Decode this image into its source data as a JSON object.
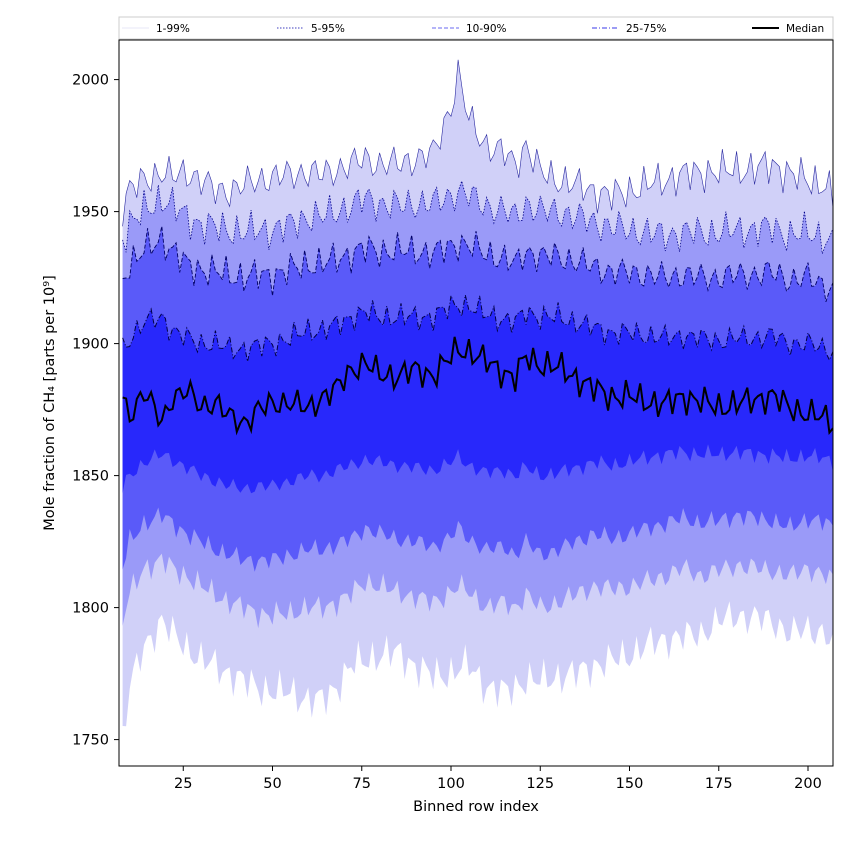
{
  "chart_data": {
    "type": "area",
    "xlabel": "Binned row index",
    "ylabel": "Mole fraction of CH₄ [parts per 10⁹]",
    "xlim": [
      7,
      207
    ],
    "ylim": [
      1740,
      2015
    ],
    "xticks": [
      25,
      50,
      75,
      100,
      125,
      150,
      175,
      200
    ],
    "yticks": [
      1750,
      1800,
      1850,
      1900,
      1950,
      2000
    ],
    "grid": false,
    "legend_placement": "top, across full width",
    "legend": [
      {
        "label": "1-99%",
        "color": "#d0d0f0",
        "style": "solid-thin"
      },
      {
        "label": "5-95%",
        "color": "#0000aa",
        "style": "dotted"
      },
      {
        "label": "10-90%",
        "color": "#6a6af2",
        "style": "dashed"
      },
      {
        "label": "25-75%",
        "color": "#3a3ae8",
        "style": "dashdot"
      },
      {
        "label": "Median",
        "color": "#000000",
        "style": "solid-thick"
      }
    ],
    "fill_colors": [
      "#d0d0f8",
      "#9a9af8",
      "#5a5af9",
      "#2828fb"
    ],
    "x_anchors": [
      8,
      10,
      14,
      19,
      22,
      26,
      30,
      34,
      38,
      42,
      46,
      50,
      55,
      60,
      64,
      68,
      72,
      76,
      80,
      85,
      90,
      95,
      100,
      102,
      105,
      110,
      115,
      118,
      121,
      125,
      130,
      135,
      140,
      145,
      150,
      155,
      160,
      165,
      170,
      175,
      180,
      185,
      190,
      195,
      200,
      205,
      207
    ],
    "percentiles": {
      "p1": [
        1750,
        1770,
        1785,
        1795,
        1790,
        1785,
        1780,
        1778,
        1775,
        1772,
        1770,
        1768,
        1768,
        1765,
        1765,
        1770,
        1778,
        1780,
        1782,
        1783,
        1778,
        1774,
        1775,
        1777,
        1778,
        1770,
        1768,
        1770,
        1773,
        1772,
        1774,
        1775,
        1778,
        1780,
        1782,
        1786,
        1788,
        1789,
        1790,
        1795,
        1797,
        1796,
        1795,
        1790,
        1792,
        1790,
        1785
      ],
      "p5": [
        1795,
        1805,
        1815,
        1818,
        1815,
        1812,
        1808,
        1805,
        1802,
        1800,
        1798,
        1797,
        1798,
        1800,
        1800,
        1802,
        1805,
        1810,
        1808,
        1806,
        1804,
        1802,
        1806,
        1808,
        1806,
        1800,
        1802,
        1800,
        1805,
        1800,
        1802,
        1805,
        1808,
        1807,
        1808,
        1810,
        1812,
        1815,
        1812,
        1814,
        1816,
        1815,
        1814,
        1812,
        1815,
        1812,
        1810
      ],
      "p10": [
        1815,
        1825,
        1832,
        1835,
        1832,
        1828,
        1825,
        1822,
        1820,
        1818,
        1818,
        1818,
        1820,
        1822,
        1822,
        1824,
        1826,
        1830,
        1828,
        1826,
        1825,
        1823,
        1827,
        1830,
        1826,
        1822,
        1823,
        1820,
        1825,
        1820,
        1822,
        1825,
        1828,
        1826,
        1828,
        1830,
        1832,
        1834,
        1832,
        1833,
        1835,
        1834,
        1833,
        1830,
        1834,
        1832,
        1830
      ],
      "p25": [
        1845,
        1850,
        1855,
        1858,
        1856,
        1853,
        1850,
        1848,
        1846,
        1845,
        1846,
        1846,
        1848,
        1850,
        1850,
        1852,
        1854,
        1856,
        1855,
        1854,
        1853,
        1852,
        1855,
        1857,
        1854,
        1851,
        1852,
        1850,
        1853,
        1850,
        1851,
        1853,
        1855,
        1854,
        1855,
        1857,
        1858,
        1859,
        1858,
        1858,
        1859,
        1858,
        1858,
        1856,
        1858,
        1856,
        1855
      ],
      "p50": [
        1878,
        1873,
        1882,
        1870,
        1880,
        1882,
        1876,
        1878,
        1872,
        1870,
        1875,
        1877,
        1878,
        1875,
        1880,
        1883,
        1890,
        1893,
        1888,
        1888,
        1890,
        1888,
        1895,
        1898,
        1897,
        1893,
        1889,
        1887,
        1895,
        1892,
        1891,
        1887,
        1883,
        1880,
        1880,
        1878,
        1877,
        1880,
        1878,
        1876,
        1877,
        1879,
        1880,
        1876,
        1873,
        1872,
        1870
      ],
      "p75": [
        1898,
        1902,
        1908,
        1910,
        1905,
        1902,
        1900,
        1900,
        1898,
        1898,
        1899,
        1900,
        1902,
        1905,
        1905,
        1907,
        1910,
        1912,
        1910,
        1910,
        1910,
        1910,
        1914,
        1915,
        1914,
        1911,
        1909,
        1908,
        1912,
        1910,
        1910,
        1908,
        1906,
        1904,
        1904,
        1903,
        1902,
        1903,
        1902,
        1901,
        1902,
        1902,
        1903,
        1900,
        1900,
        1898,
        1897
      ],
      "p90": [
        1925,
        1930,
        1935,
        1940,
        1935,
        1930,
        1928,
        1927,
        1926,
        1925,
        1926,
        1926,
        1928,
        1930,
        1930,
        1932,
        1934,
        1936,
        1935,
        1935,
        1935,
        1934,
        1937,
        1938,
        1937,
        1934,
        1932,
        1930,
        1935,
        1933,
        1933,
        1931,
        1929,
        1927,
        1927,
        1926,
        1925,
        1926,
        1925,
        1925,
        1926,
        1926,
        1927,
        1924,
        1925,
        1922,
        1920
      ],
      "p95": [
        1940,
        1945,
        1950,
        1955,
        1952,
        1948,
        1945,
        1944,
        1943,
        1942,
        1943,
        1943,
        1945,
        1948,
        1948,
        1950,
        1952,
        1955,
        1953,
        1952,
        1953,
        1953,
        1956,
        1958,
        1956,
        1952,
        1950,
        1948,
        1953,
        1950,
        1950,
        1948,
        1946,
        1944,
        1943,
        1942,
        1941,
        1942,
        1942,
        1942,
        1943,
        1943,
        1944,
        1941,
        1942,
        1940,
        1938
      ],
      "p99": [
        1952,
        1958,
        1962,
        1965,
        1963,
        1965,
        1962,
        1958,
        1958,
        1960,
        1962,
        1963,
        1964,
        1965,
        1964,
        1966,
        1968,
        1970,
        1968,
        1968,
        1970,
        1972,
        1990,
        2002,
        1985,
        1975,
        1972,
        1968,
        1975,
        1965,
        1962,
        1960,
        1958,
        1956,
        1958,
        1960,
        1962,
        1964,
        1965,
        1965,
        1966,
        1966,
        1968,
        1964,
        1962,
        1960,
        1955
      ]
    }
  }
}
